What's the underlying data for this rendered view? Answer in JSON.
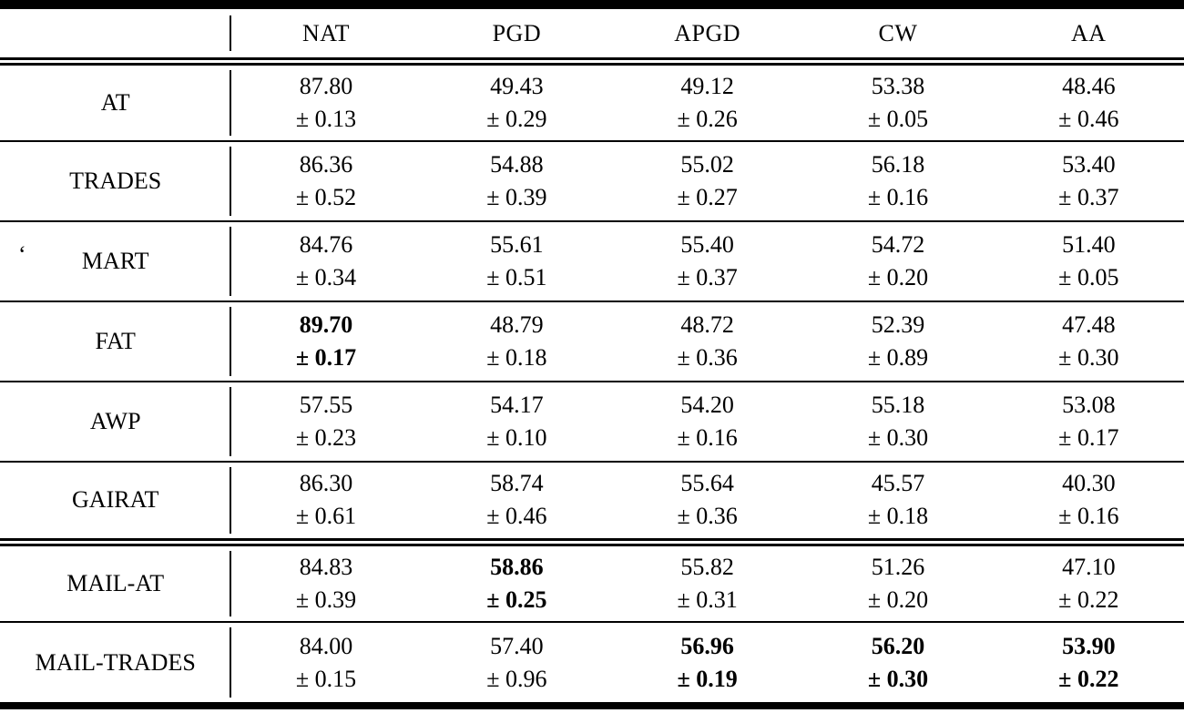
{
  "table": {
    "corner": "",
    "columns": [
      "NAT",
      "PGD",
      "APGD",
      "CW",
      "AA"
    ],
    "rows": [
      {
        "label": "AT",
        "prefix": "",
        "separator_above": "none",
        "cells": [
          {
            "value": "87.80",
            "std": "± 0.13",
            "bold": false
          },
          {
            "value": "49.43",
            "std": "± 0.29",
            "bold": false
          },
          {
            "value": "49.12",
            "std": "± 0.26",
            "bold": false
          },
          {
            "value": "53.38",
            "std": "± 0.05",
            "bold": false
          },
          {
            "value": "48.46",
            "std": "± 0.46",
            "bold": false
          }
        ]
      },
      {
        "label": "TRADES",
        "prefix": "",
        "separator_above": "single",
        "cells": [
          {
            "value": "86.36",
            "std": "± 0.52",
            "bold": false
          },
          {
            "value": "54.88",
            "std": "± 0.39",
            "bold": false
          },
          {
            "value": "55.02",
            "std": "± 0.27",
            "bold": false
          },
          {
            "value": "56.18",
            "std": "± 0.16",
            "bold": false
          },
          {
            "value": "53.40",
            "std": "± 0.37",
            "bold": false
          }
        ]
      },
      {
        "label": "MART",
        "prefix": "‘",
        "separator_above": "single",
        "cells": [
          {
            "value": "84.76",
            "std": "± 0.34",
            "bold": false
          },
          {
            "value": "55.61",
            "std": "± 0.51",
            "bold": false
          },
          {
            "value": "55.40",
            "std": "± 0.37",
            "bold": false
          },
          {
            "value": "54.72",
            "std": "± 0.20",
            "bold": false
          },
          {
            "value": "51.40",
            "std": "± 0.05",
            "bold": false
          }
        ]
      },
      {
        "label": "FAT",
        "prefix": "",
        "separator_above": "single",
        "cells": [
          {
            "value": "89.70",
            "std": "± 0.17",
            "bold": true
          },
          {
            "value": "48.79",
            "std": "± 0.18",
            "bold": false
          },
          {
            "value": "48.72",
            "std": "± 0.36",
            "bold": false
          },
          {
            "value": "52.39",
            "std": "± 0.89",
            "bold": false
          },
          {
            "value": "47.48",
            "std": "± 0.30",
            "bold": false
          }
        ]
      },
      {
        "label": "AWP",
        "prefix": "",
        "separator_above": "single",
        "cells": [
          {
            "value": "57.55",
            "std": "± 0.23",
            "bold": false
          },
          {
            "value": "54.17",
            "std": "± 0.10",
            "bold": false
          },
          {
            "value": "54.20",
            "std": "± 0.16",
            "bold": false
          },
          {
            "value": "55.18",
            "std": "± 0.30",
            "bold": false
          },
          {
            "value": "53.08",
            "std": "± 0.17",
            "bold": false
          }
        ]
      },
      {
        "label": "GAIRAT",
        "prefix": "",
        "separator_above": "single",
        "cells": [
          {
            "value": "86.30",
            "std": "± 0.61",
            "bold": false
          },
          {
            "value": "58.74",
            "std": "± 0.46",
            "bold": false
          },
          {
            "value": "55.64",
            "std": "± 0.36",
            "bold": false
          },
          {
            "value": "45.57",
            "std": "± 0.18",
            "bold": false
          },
          {
            "value": "40.30",
            "std": "± 0.16",
            "bold": false
          }
        ]
      },
      {
        "label": "MAIL-AT",
        "prefix": "",
        "separator_above": "double",
        "cells": [
          {
            "value": "84.83",
            "std": "± 0.39",
            "bold": false
          },
          {
            "value": "58.86",
            "std": "± 0.25",
            "bold": true
          },
          {
            "value": "55.82",
            "std": "± 0.31",
            "bold": false
          },
          {
            "value": "51.26",
            "std": "± 0.20",
            "bold": false
          },
          {
            "value": "47.10",
            "std": "± 0.22",
            "bold": false
          }
        ]
      },
      {
        "label": "MAIL-TRADES",
        "prefix": "",
        "separator_above": "single",
        "cells": [
          {
            "value": "84.00",
            "std": "± 0.15",
            "bold": false
          },
          {
            "value": "57.40",
            "std": "± 0.96",
            "bold": false
          },
          {
            "value": "56.96",
            "std": "± 0.19",
            "bold": true
          },
          {
            "value": "56.20",
            "std": "± 0.30",
            "bold": true
          },
          {
            "value": "53.90",
            "std": "± 0.22",
            "bold": true
          }
        ]
      }
    ]
  }
}
